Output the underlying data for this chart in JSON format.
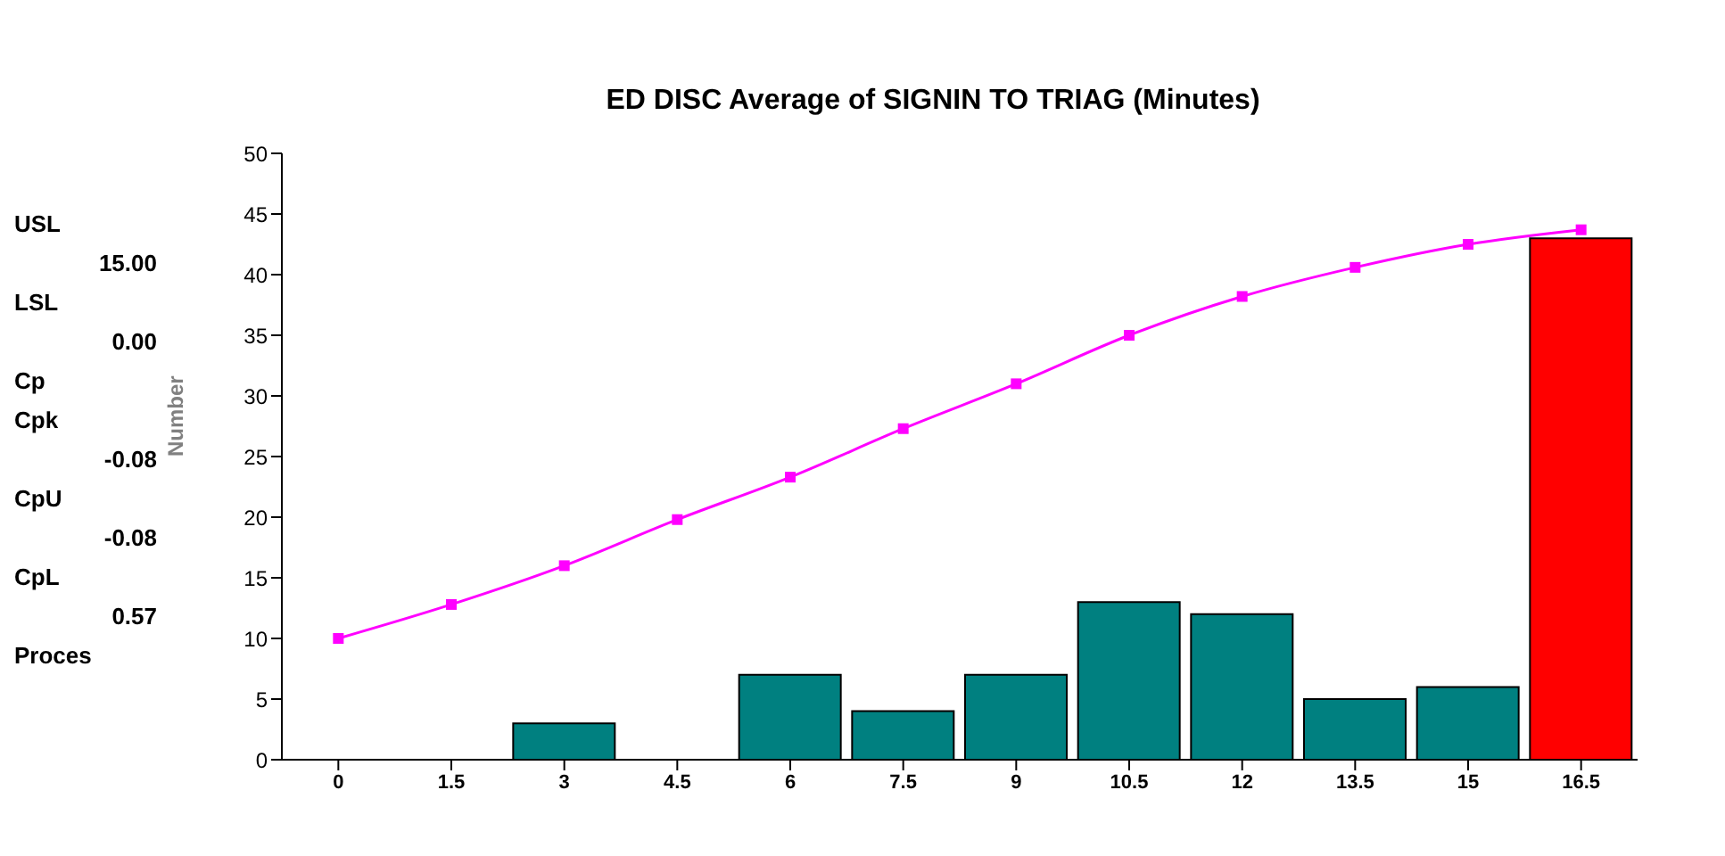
{
  "chart_data": {
    "type": "bar",
    "title": "ED DISC Average of SIGNIN TO TRIAG (Minutes)",
    "ylabel": "Number",
    "categories": [
      "0",
      "1.5",
      "3",
      "4.5",
      "6",
      "7.5",
      "9",
      "10.5",
      "12",
      "13.5",
      "15",
      "16.5"
    ],
    "ylim": [
      0,
      50
    ],
    "yticks": [
      0,
      5,
      10,
      15,
      20,
      25,
      30,
      35,
      40,
      45,
      50
    ],
    "series": [
      {
        "values": [
          0,
          0,
          3,
          0,
          7,
          4,
          7,
          13,
          12,
          5,
          6,
          43
        ],
        "colors": [
          "#008080",
          "#008080",
          "#008080",
          "#008080",
          "#008080",
          "#008080",
          "#008080",
          "#008080",
          "#008080",
          "#008080",
          "#008080",
          "#ff0000"
        ]
      },
      {
        "type": "line",
        "color": "#ff00ff",
        "marker": "square",
        "values": [
          10,
          12.8,
          16,
          19.8,
          23.3,
          27.3,
          31,
          35,
          38.2,
          40.6,
          42.5,
          43.7
        ]
      }
    ],
    "annotations": [
      "USL",
      "15.00",
      "LSL",
      "0.00",
      "Cp",
      "Cpk",
      "-0.08",
      "CpU",
      "-0.08",
      "CpL",
      "0.57",
      "Proces"
    ]
  }
}
